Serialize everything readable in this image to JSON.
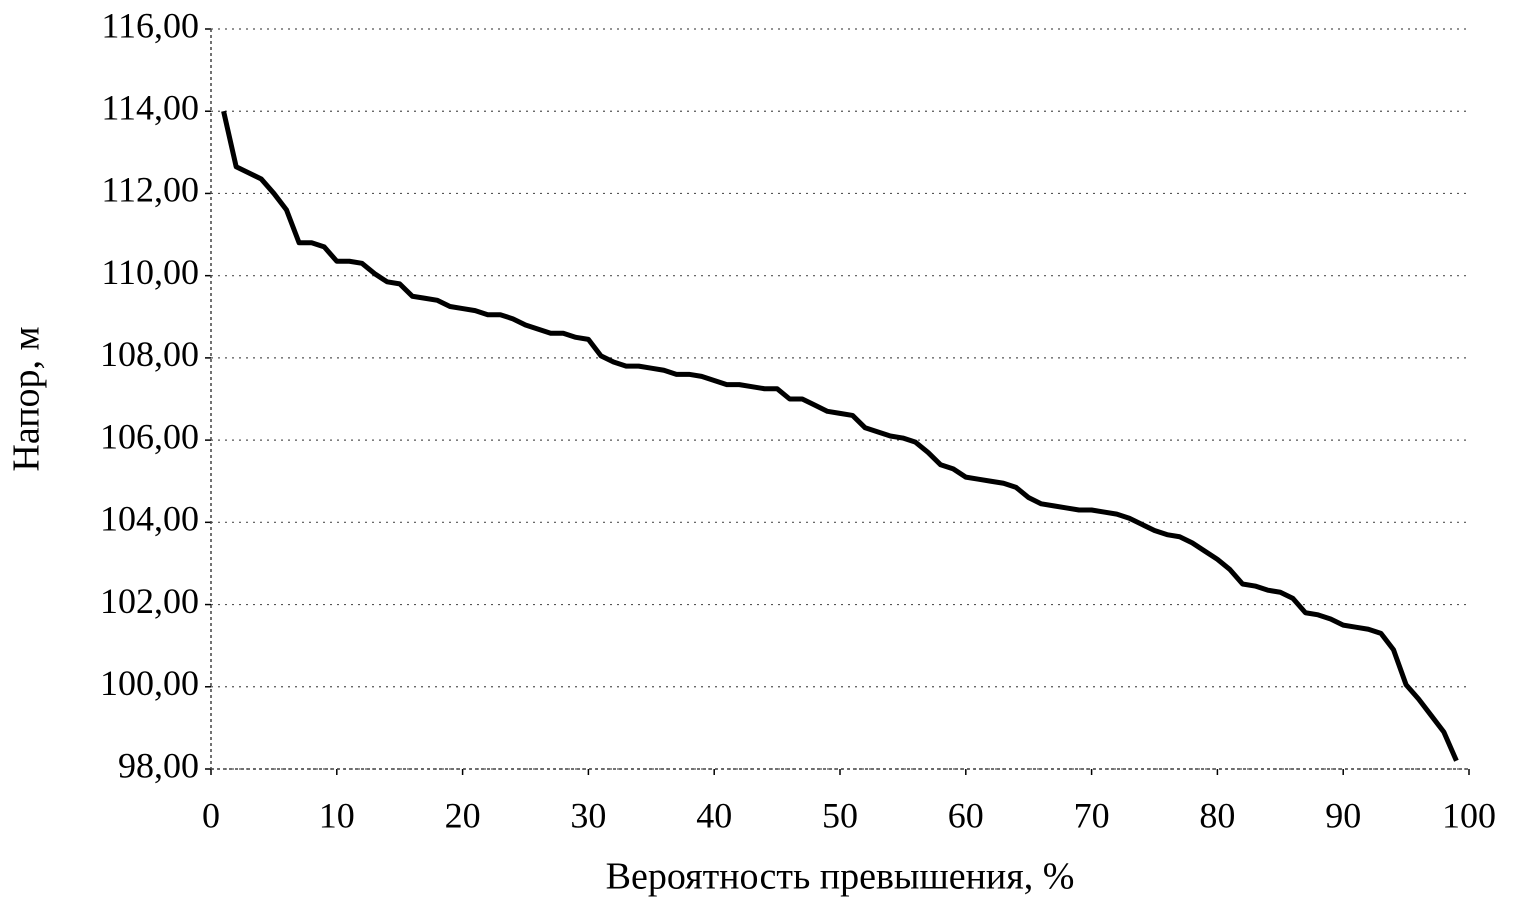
{
  "chart_data": {
    "type": "line",
    "x_label": "Вероятность превышения, %",
    "y_label": "Напор, м",
    "xlim": [
      0,
      100
    ],
    "xticks": [
      0,
      10,
      20,
      30,
      40,
      50,
      60,
      70,
      80,
      90,
      100
    ],
    "ylim": [
      98,
      116
    ],
    "yticks": [
      {
        "value": 98,
        "label": "98,00"
      },
      {
        "value": 100,
        "label": "100,00"
      },
      {
        "value": 102,
        "label": "102,00"
      },
      {
        "value": 104,
        "label": "104,00"
      },
      {
        "value": 106,
        "label": "106,00"
      },
      {
        "value": 108,
        "label": "108,00"
      },
      {
        "value": 110,
        "label": "110,00"
      },
      {
        "value": 112,
        "label": "112,00"
      },
      {
        "value": 114,
        "label": "114,00"
      },
      {
        "value": 116,
        "label": "116,00"
      }
    ],
    "grid": true,
    "x": [
      1,
      2,
      3,
      4,
      5,
      6,
      7,
      8,
      9,
      10,
      11,
      12,
      13,
      14,
      15,
      16,
      17,
      18,
      19,
      20,
      21,
      22,
      23,
      24,
      25,
      26,
      27,
      28,
      29,
      30,
      31,
      32,
      33,
      34,
      35,
      36,
      37,
      38,
      39,
      40,
      41,
      42,
      43,
      44,
      45,
      46,
      47,
      48,
      49,
      50,
      51,
      52,
      53,
      54,
      55,
      56,
      57,
      58,
      59,
      60,
      61,
      62,
      63,
      64,
      65,
      66,
      67,
      68,
      69,
      70,
      71,
      72,
      73,
      74,
      75,
      76,
      77,
      78,
      79,
      80,
      81,
      82,
      83,
      84,
      85,
      86,
      87,
      88,
      89,
      90,
      91,
      92,
      93,
      94,
      95,
      96,
      97,
      98,
      99
    ],
    "series": [
      {
        "color": "#000000",
        "values": [
          114.0,
          112.65,
          112.5,
          112.35,
          112.0,
          111.6,
          110.8,
          110.8,
          110.7,
          110.35,
          110.35,
          110.3,
          110.05,
          109.85,
          109.8,
          109.5,
          109.45,
          109.4,
          109.25,
          109.2,
          109.15,
          109.05,
          109.05,
          108.95,
          108.8,
          108.7,
          108.6,
          108.6,
          108.5,
          108.45,
          108.05,
          107.9,
          107.8,
          107.8,
          107.75,
          107.7,
          107.6,
          107.6,
          107.55,
          107.45,
          107.35,
          107.35,
          107.3,
          107.25,
          107.25,
          107.0,
          107.0,
          106.85,
          106.7,
          106.65,
          106.6,
          106.3,
          106.2,
          106.1,
          106.05,
          105.95,
          105.7,
          105.4,
          105.3,
          105.1,
          105.05,
          105.0,
          104.95,
          104.85,
          104.6,
          104.45,
          104.4,
          104.35,
          104.3,
          104.3,
          104.25,
          104.2,
          104.1,
          103.95,
          103.8,
          103.7,
          103.65,
          103.5,
          103.3,
          103.1,
          102.85,
          102.5,
          102.45,
          102.35,
          102.3,
          102.15,
          101.8,
          101.75,
          101.65,
          101.5,
          101.45,
          101.4,
          101.3,
          100.9,
          100.05,
          99.7,
          99.3,
          98.9,
          98.2
        ]
      }
    ]
  }
}
